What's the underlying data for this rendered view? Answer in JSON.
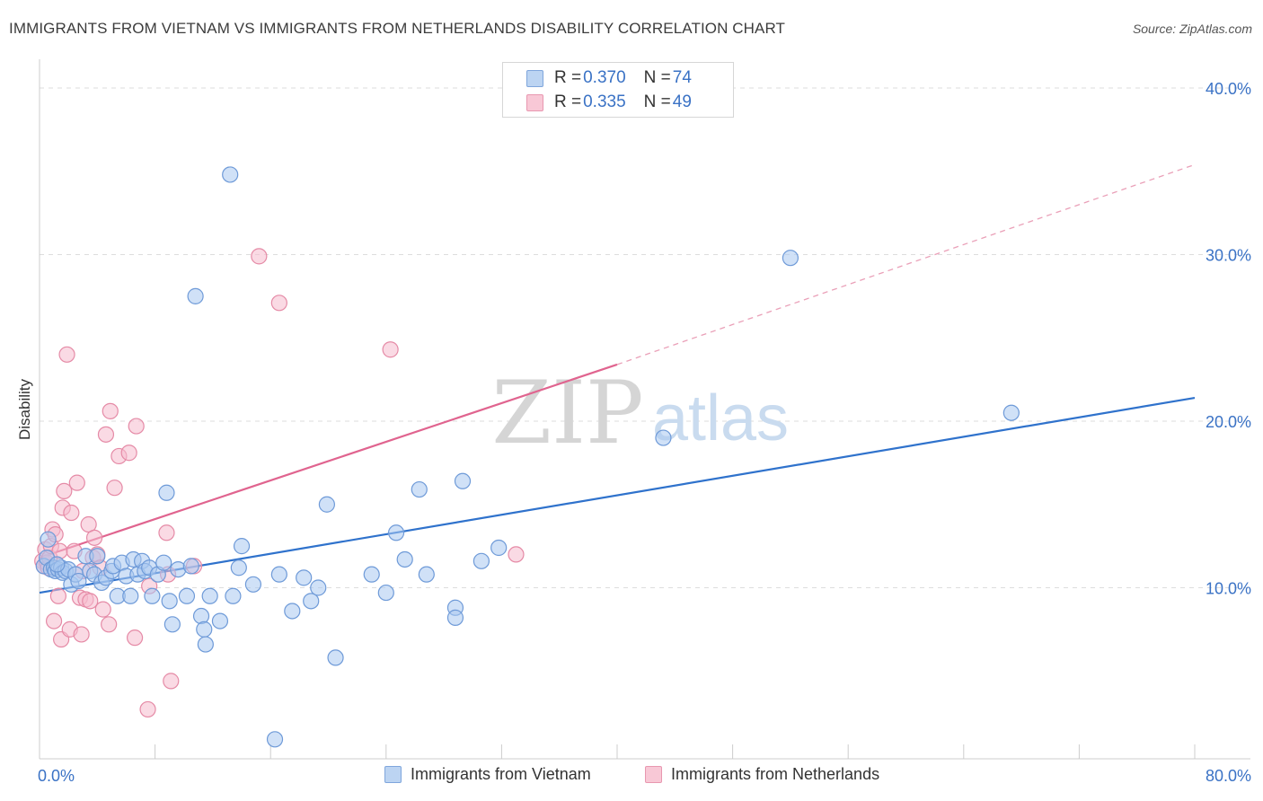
{
  "title": "IMMIGRANTS FROM VIETNAM VS IMMIGRANTS FROM NETHERLANDS DISABILITY CORRELATION CHART",
  "source": "Source: ZipAtlas.com",
  "watermark": {
    "zip": "ZIP",
    "atlas": "atlas"
  },
  "colors": {
    "blue_fill": "#a9c8f0",
    "blue_stroke": "#6e9ad8",
    "blue_line": "#2f72cc",
    "pink_fill": "#f6bccd",
    "pink_stroke": "#e58aa6",
    "pink_line": "#e0648f",
    "axis_text": "#3a72c5",
    "grid": "#dddddd"
  },
  "legend": {
    "rows": [
      {
        "r_label": "R = ",
        "r_value": "0.370",
        "n_label": "N = ",
        "n_value": "74",
        "color": "blue"
      },
      {
        "r_label": "R = ",
        "r_value": "0.335",
        "n_label": "N = ",
        "n_value": "49",
        "color": "pink"
      }
    ]
  },
  "bottom_legend": {
    "series1": "Immigrants from Vietnam",
    "series2": "Immigrants from Netherlands"
  },
  "chart_data": {
    "type": "scatter",
    "title": "IMMIGRANTS FROM VIETNAM VS IMMIGRANTS FROM NETHERLANDS DISABILITY CORRELATION CHART",
    "xlabel": "",
    "ylabel": "Disability",
    "xlim": [
      0,
      80
    ],
    "ylim": [
      0,
      40
    ],
    "x_tick_labels": [
      "0.0%",
      "80.0%"
    ],
    "y_ticks": [
      10,
      20,
      30,
      40
    ],
    "y_tick_labels": [
      "10.0%",
      "20.0%",
      "30.0%",
      "40.0%"
    ],
    "grid": true,
    "series": [
      {
        "name": "Immigrants from Vietnam",
        "color": "blue",
        "R": 0.37,
        "N": 74,
        "trend": {
          "x0": 0,
          "y0": 9.7,
          "x1": 80,
          "y1": 21.4,
          "dashed_to": 80
        },
        "points": [
          [
            0.3,
            11.3
          ],
          [
            0.5,
            11.8
          ],
          [
            0.6,
            12.9
          ],
          [
            0.8,
            11.1
          ],
          [
            1.0,
            11.2
          ],
          [
            1.1,
            11.0
          ],
          [
            1.3,
            11.1
          ],
          [
            1.5,
            11.2
          ],
          [
            1.6,
            10.9
          ],
          [
            1.8,
            11.0
          ],
          [
            2.0,
            11.1
          ],
          [
            2.2,
            10.2
          ],
          [
            2.5,
            10.8
          ],
          [
            2.7,
            10.4
          ],
          [
            3.2,
            11.9
          ],
          [
            3.5,
            11.0
          ],
          [
            3.8,
            10.8
          ],
          [
            4.0,
            11.9
          ],
          [
            4.3,
            10.3
          ],
          [
            4.6,
            10.6
          ],
          [
            5.0,
            11.0
          ],
          [
            5.1,
            11.3
          ],
          [
            5.4,
            9.5
          ],
          [
            5.7,
            11.5
          ],
          [
            6.0,
            10.7
          ],
          [
            6.3,
            9.5
          ],
          [
            6.5,
            11.7
          ],
          [
            6.8,
            10.8
          ],
          [
            7.1,
            11.6
          ],
          [
            7.3,
            11.0
          ],
          [
            7.6,
            11.2
          ],
          [
            7.8,
            9.5
          ],
          [
            8.2,
            10.8
          ],
          [
            8.6,
            11.5
          ],
          [
            8.8,
            15.7
          ],
          [
            9.0,
            9.2
          ],
          [
            9.2,
            7.8
          ],
          [
            9.6,
            11.1
          ],
          [
            10.2,
            9.5
          ],
          [
            10.5,
            11.3
          ],
          [
            10.8,
            27.5
          ],
          [
            11.2,
            8.3
          ],
          [
            11.4,
            7.5
          ],
          [
            11.5,
            6.6
          ],
          [
            11.8,
            9.5
          ],
          [
            12.5,
            8.0
          ],
          [
            13.2,
            34.8
          ],
          [
            13.4,
            9.5
          ],
          [
            13.8,
            11.2
          ],
          [
            14.0,
            12.5
          ],
          [
            14.8,
            10.2
          ],
          [
            16.3,
            0.9
          ],
          [
            16.6,
            10.8
          ],
          [
            17.5,
            8.6
          ],
          [
            18.3,
            10.6
          ],
          [
            18.8,
            9.2
          ],
          [
            19.3,
            10.0
          ],
          [
            19.9,
            15.0
          ],
          [
            20.5,
            5.8
          ],
          [
            23.0,
            10.8
          ],
          [
            24.0,
            9.7
          ],
          [
            24.7,
            13.3
          ],
          [
            25.3,
            11.7
          ],
          [
            26.3,
            15.9
          ],
          [
            26.8,
            10.8
          ],
          [
            28.8,
            8.8
          ],
          [
            28.8,
            8.2
          ],
          [
            29.3,
            16.4
          ],
          [
            30.6,
            11.6
          ],
          [
            31.8,
            12.4
          ],
          [
            43.2,
            19.0
          ],
          [
            52.0,
            29.8
          ],
          [
            67.3,
            20.5
          ],
          [
            1.2,
            11.4
          ]
        ]
      },
      {
        "name": "Immigrants from Netherlands",
        "color": "pink",
        "R": 0.335,
        "N": 49,
        "trend": {
          "x0": 0,
          "y0": 11.8,
          "x1": 40,
          "y1": 23.4,
          "dashed_to": 80,
          "dashed_y1": 35.4
        },
        "points": [
          [
            0.2,
            11.6
          ],
          [
            0.3,
            11.3
          ],
          [
            0.4,
            12.3
          ],
          [
            0.5,
            11.5
          ],
          [
            0.6,
            11.2
          ],
          [
            0.7,
            11.8
          ],
          [
            0.8,
            12.5
          ],
          [
            0.9,
            13.5
          ],
          [
            1.0,
            8.0
          ],
          [
            1.1,
            13.2
          ],
          [
            1.3,
            9.5
          ],
          [
            1.4,
            12.2
          ],
          [
            1.5,
            6.9
          ],
          [
            1.6,
            14.8
          ],
          [
            1.7,
            15.8
          ],
          [
            1.9,
            24.0
          ],
          [
            2.1,
            7.5
          ],
          [
            2.2,
            14.5
          ],
          [
            2.4,
            12.2
          ],
          [
            2.6,
            16.3
          ],
          [
            2.8,
            9.4
          ],
          [
            2.9,
            7.2
          ],
          [
            3.0,
            11.0
          ],
          [
            3.2,
            9.3
          ],
          [
            3.4,
            13.8
          ],
          [
            3.5,
            9.2
          ],
          [
            3.7,
            11.8
          ],
          [
            3.8,
            13.0
          ],
          [
            4.0,
            12.0
          ],
          [
            4.2,
            11.2
          ],
          [
            4.4,
            8.7
          ],
          [
            4.6,
            19.2
          ],
          [
            4.8,
            7.8
          ],
          [
            4.9,
            20.6
          ],
          [
            5.2,
            16.0
          ],
          [
            5.5,
            17.9
          ],
          [
            6.2,
            18.1
          ],
          [
            6.6,
            7.0
          ],
          [
            6.7,
            19.7
          ],
          [
            7.5,
            2.7
          ],
          [
            7.6,
            10.1
          ],
          [
            8.8,
            13.3
          ],
          [
            8.9,
            10.8
          ],
          [
            9.1,
            4.4
          ],
          [
            10.7,
            11.3
          ],
          [
            15.2,
            29.9
          ],
          [
            16.6,
            27.1
          ],
          [
            24.3,
            24.3
          ],
          [
            33.0,
            12.0
          ]
        ]
      }
    ]
  }
}
